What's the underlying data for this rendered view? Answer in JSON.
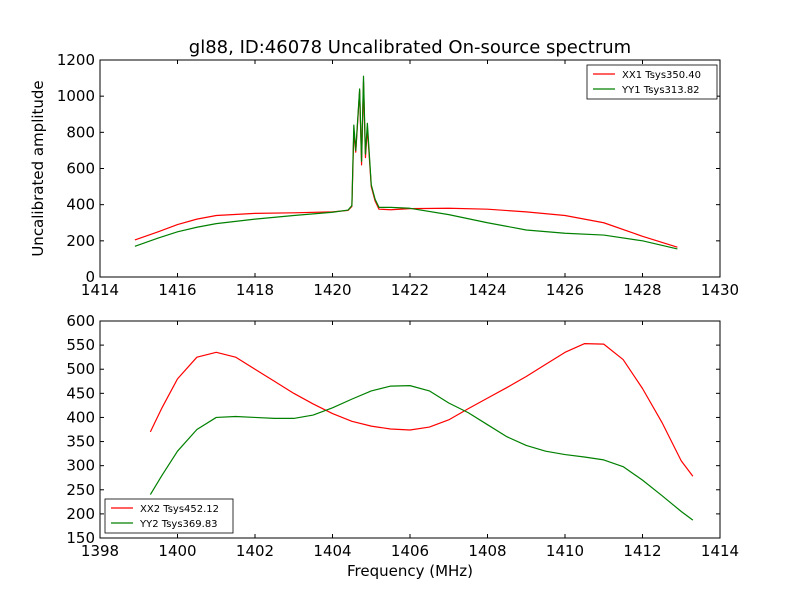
{
  "title": "gl88, ID:46078 Uncalibrated On-source spectrum",
  "colors": {
    "XX": "#ff0000",
    "YY": "#008000"
  },
  "chart_data": [
    {
      "type": "line",
      "title": "gl88, ID:46078 Uncalibrated On-source spectrum",
      "xlabel": "",
      "ylabel": "Uncalibrated amplitude",
      "xlim": [
        1414,
        1430
      ],
      "ylim": [
        0,
        1200
      ],
      "xticks": [
        1414,
        1416,
        1418,
        1420,
        1422,
        1424,
        1426,
        1428,
        1430
      ],
      "yticks": [
        0,
        200,
        400,
        600,
        800,
        1000,
        1200
      ],
      "grid": false,
      "legend_position": "top-right",
      "series": [
        {
          "name": "XX1 Tsys350.40",
          "color": "#ff0000",
          "x": [
            1414.9,
            1415.5,
            1416,
            1416.5,
            1417,
            1418,
            1419,
            1420,
            1420.4,
            1420.5,
            1420.55,
            1420.6,
            1420.7,
            1420.75,
            1420.8,
            1420.85,
            1420.9,
            1421.0,
            1421.1,
            1421.2,
            1421.5,
            1422,
            1423,
            1424,
            1425,
            1426,
            1427,
            1428,
            1428.9
          ],
          "y": [
            205,
            250,
            290,
            320,
            340,
            352,
            355,
            360,
            368,
            390,
            800,
            690,
            1030,
            620,
            1080,
            660,
            820,
            500,
            420,
            375,
            372,
            378,
            380,
            375,
            360,
            340,
            300,
            225,
            165
          ]
        },
        {
          "name": "YY1 Tsys313.82",
          "color": "#008000",
          "x": [
            1414.9,
            1415.5,
            1416,
            1416.5,
            1417,
            1418,
            1419,
            1420,
            1420.4,
            1420.5,
            1420.55,
            1420.6,
            1420.7,
            1420.75,
            1420.8,
            1420.85,
            1420.9,
            1421.0,
            1421.1,
            1421.2,
            1421.5,
            1422,
            1423,
            1424,
            1425,
            1426,
            1427,
            1428,
            1428.9
          ],
          "y": [
            170,
            215,
            250,
            275,
            295,
            320,
            340,
            358,
            370,
            395,
            840,
            700,
            1040,
            640,
            1110,
            680,
            850,
            510,
            430,
            385,
            385,
            380,
            345,
            300,
            260,
            242,
            232,
            200,
            155
          ]
        }
      ]
    },
    {
      "type": "line",
      "title": "",
      "xlabel": "Frequency (MHz)",
      "ylabel": "",
      "xlim": [
        1398,
        1414
      ],
      "ylim": [
        150,
        600
      ],
      "xticks": [
        1398,
        1400,
        1402,
        1404,
        1406,
        1408,
        1410,
        1412,
        1414
      ],
      "yticks": [
        150,
        200,
        250,
        300,
        350,
        400,
        450,
        500,
        550,
        600
      ],
      "grid": false,
      "legend_position": "bottom-left",
      "series": [
        {
          "name": "XX2 Tsys452.12",
          "color": "#ff0000",
          "x": [
            1399.3,
            1399.6,
            1400,
            1400.5,
            1401,
            1401.5,
            1402,
            1402.5,
            1403,
            1403.5,
            1404,
            1404.5,
            1405,
            1405.5,
            1406,
            1406.5,
            1407,
            1407.5,
            1408,
            1408.5,
            1409,
            1409.5,
            1410,
            1410.5,
            1411,
            1411.5,
            1412,
            1412.5,
            1413,
            1413.3
          ],
          "y": [
            370,
            420,
            480,
            525,
            535,
            525,
            500,
            475,
            450,
            428,
            408,
            392,
            382,
            376,
            374,
            380,
            395,
            418,
            440,
            462,
            485,
            510,
            535,
            553,
            552,
            520,
            460,
            390,
            310,
            278
          ]
        },
        {
          "name": "YY2 Tsys369.83",
          "color": "#008000",
          "x": [
            1399.3,
            1399.6,
            1400,
            1400.5,
            1401,
            1401.5,
            1402,
            1402.5,
            1403,
            1403.5,
            1404,
            1404.5,
            1405,
            1405.5,
            1406,
            1406.5,
            1407,
            1407.5,
            1408,
            1408.5,
            1409,
            1409.5,
            1410,
            1410.5,
            1411,
            1411.5,
            1412,
            1412.5,
            1413,
            1413.3
          ],
          "y": [
            240,
            280,
            330,
            375,
            400,
            402,
            400,
            398,
            398,
            405,
            420,
            438,
            455,
            465,
            466,
            455,
            430,
            410,
            385,
            360,
            342,
            330,
            323,
            318,
            312,
            298,
            270,
            238,
            205,
            187
          ]
        }
      ]
    }
  ]
}
